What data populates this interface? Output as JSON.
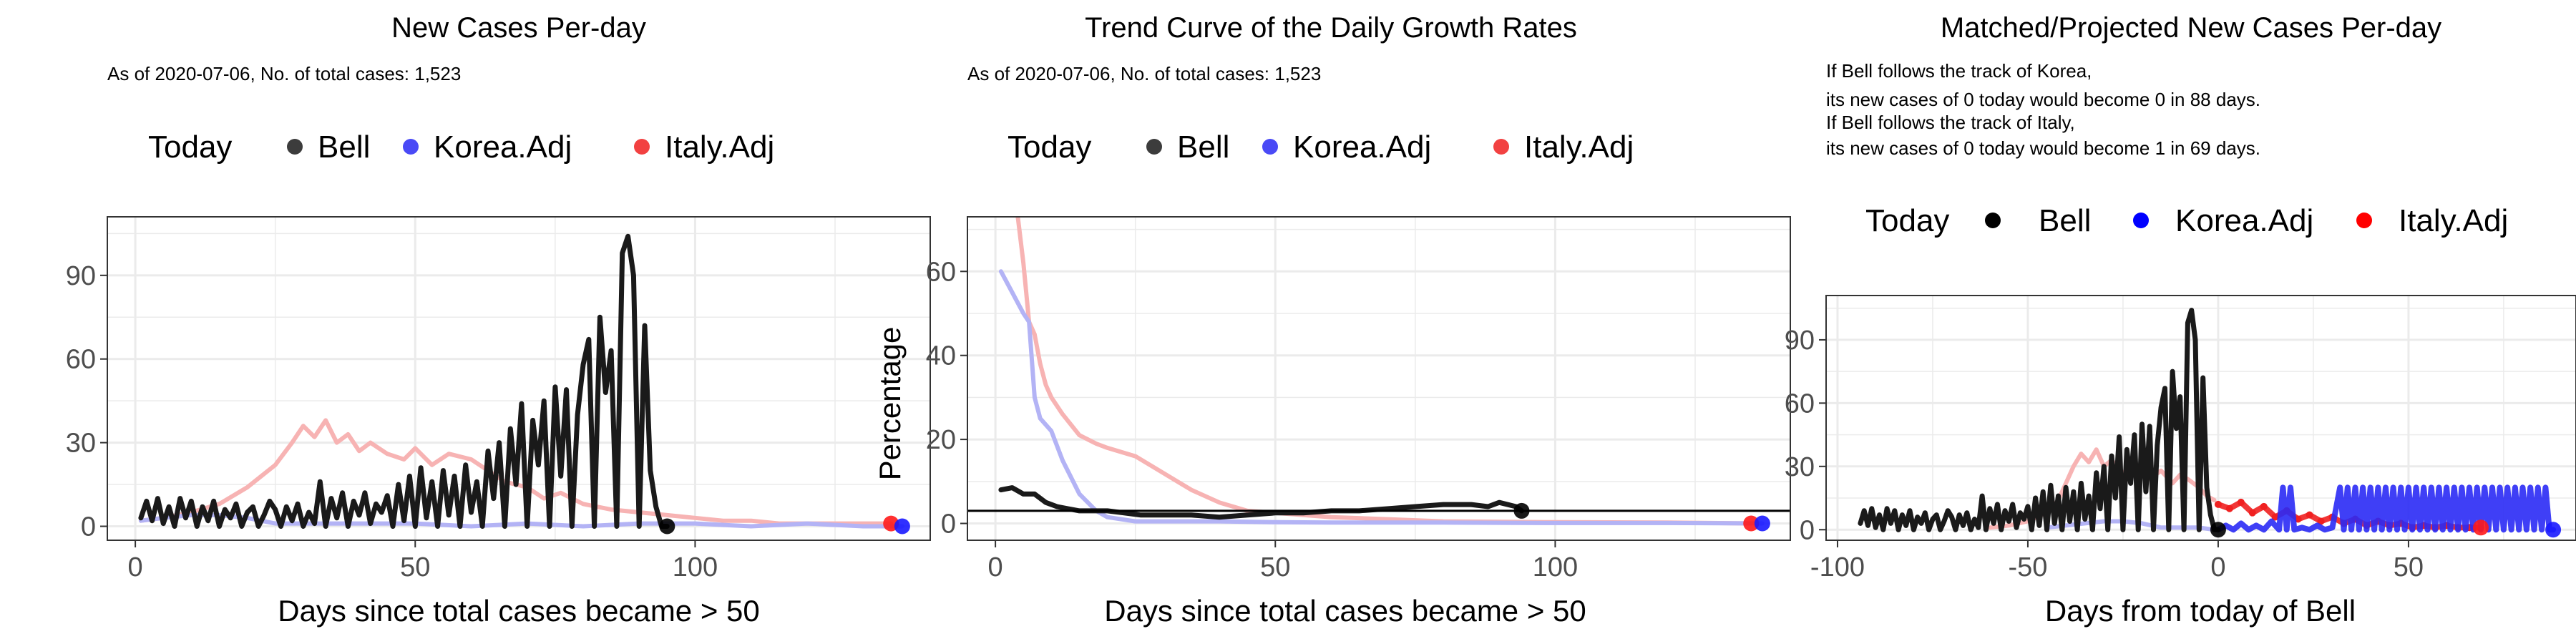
{
  "colors": {
    "bell": "#1a1a1a",
    "korea": "#2a2af5",
    "italy": "#f02020",
    "korea_faded": "#b3b3f5",
    "italy_faded": "#f7b3b3",
    "grid": "#ebebeb",
    "panel_border": "#333333"
  },
  "legend": {
    "title": "Today",
    "items": [
      "Bell",
      "Korea.Adj",
      "Italy.Adj"
    ]
  },
  "chart_data": [
    {
      "type": "line",
      "title": "New Cases Per-day",
      "subtitle": [
        "As of 2020-07-06, No. of total cases: 1,523"
      ],
      "xlabel": "Days since total cases became > 50",
      "ylabel": "",
      "xlim": [
        -5,
        142
      ],
      "ylim": [
        -5,
        111
      ],
      "xticks": [
        0,
        50,
        100
      ],
      "yticks": [
        0,
        30,
        60,
        90
      ],
      "series": [
        {
          "name": "Italy.Adj",
          "x": [
            1,
            5,
            10,
            15,
            20,
            25,
            28,
            30,
            32,
            34,
            36,
            38,
            40,
            42,
            45,
            48,
            50,
            53,
            56,
            60,
            63,
            66,
            70,
            73,
            76,
            80,
            85,
            90,
            95,
            100,
            105,
            110,
            115,
            120,
            125,
            130,
            135
          ],
          "values": [
            2,
            3,
            5,
            8,
            14,
            22,
            30,
            36,
            32,
            38,
            30,
            33,
            27,
            30,
            26,
            24,
            28,
            22,
            26,
            24,
            20,
            16,
            14,
            10,
            12,
            8,
            6,
            5,
            4,
            3,
            2,
            2,
            1,
            1,
            1,
            1,
            1
          ]
        },
        {
          "name": "Korea.Adj",
          "x": [
            1,
            5,
            10,
            15,
            20,
            25,
            30,
            40,
            50,
            60,
            70,
            80,
            90,
            100,
            110,
            120,
            130,
            137
          ],
          "values": [
            2,
            3,
            4,
            4,
            3,
            1,
            1,
            1,
            1,
            0,
            1,
            0,
            1,
            1,
            0,
            1,
            0,
            0
          ]
        },
        {
          "name": "Bell",
          "x": [
            1,
            2,
            3,
            4,
            5,
            6,
            7,
            8,
            9,
            10,
            11,
            12,
            13,
            14,
            15,
            16,
            17,
            18,
            19,
            20,
            21,
            22,
            23,
            24,
            25,
            26,
            27,
            28,
            29,
            30,
            31,
            32,
            33,
            34,
            35,
            36,
            37,
            38,
            39,
            40,
            41,
            42,
            43,
            44,
            45,
            46,
            47,
            48,
            49,
            50,
            51,
            52,
            53,
            54,
            55,
            56,
            57,
            58,
            59,
            60,
            61,
            62,
            63,
            64,
            65,
            66,
            67,
            68,
            69,
            70,
            71,
            72,
            73,
            74,
            75,
            76,
            77,
            78,
            79,
            80,
            81,
            82,
            83,
            84,
            85,
            86,
            87,
            88,
            89,
            90,
            91,
            92,
            93,
            94,
            95
          ],
          "values": [
            3,
            9,
            2,
            10,
            1,
            7,
            0,
            10,
            3,
            9,
            0,
            7,
            2,
            9,
            0,
            6,
            3,
            8,
            0,
            5,
            7,
            0,
            4,
            9,
            6,
            0,
            7,
            2,
            8,
            0,
            5,
            1,
            16,
            0,
            10,
            3,
            12,
            0,
            9,
            4,
            12,
            1,
            8,
            5,
            11,
            0,
            15,
            2,
            18,
            0,
            21,
            3,
            16,
            0,
            20,
            4,
            18,
            0,
            22,
            5,
            16,
            0,
            27,
            10,
            30,
            0,
            35,
            15,
            44,
            0,
            38,
            22,
            45,
            0,
            50,
            18,
            49,
            0,
            40,
            58,
            67,
            0,
            75,
            48,
            63,
            0,
            98,
            104,
            90,
            0,
            72,
            20,
            7,
            0,
            0
          ]
        }
      ],
      "today_points": [
        {
          "name": "Bell",
          "x": 95,
          "y": 0
        },
        {
          "name": "Italy.Adj",
          "x": 135,
          "y": 1
        },
        {
          "name": "Korea.Adj",
          "x": 137,
          "y": 0
        }
      ]
    },
    {
      "type": "line",
      "title": "Trend Curve of the Daily Growth Rates",
      "subtitle": [
        "As of 2020-07-06, No. of total cases: 1,523"
      ],
      "xlabel": "Days since total cases became > 50",
      "ylabel": "Percentage",
      "xlim": [
        -5,
        142
      ],
      "ylim": [
        -4,
        73
      ],
      "xticks": [
        0,
        50,
        100
      ],
      "yticks": [
        0,
        20,
        40,
        60
      ],
      "hline": 3,
      "series": [
        {
          "name": "Italy.Adj",
          "x": [
            4,
            5,
            6,
            7,
            8,
            9,
            10,
            12,
            15,
            18,
            20,
            25,
            30,
            35,
            40,
            45,
            50,
            60,
            70,
            80,
            100,
            120,
            135
          ],
          "values": [
            73,
            62,
            48,
            45,
            38,
            33,
            30,
            26,
            21,
            19,
            18,
            16,
            12,
            8,
            5,
            3,
            2.5,
            1.5,
            1,
            0.5,
            0.3,
            0.2,
            0
          ]
        },
        {
          "name": "Korea.Adj",
          "x": [
            1,
            3,
            5,
            6,
            7,
            8,
            10,
            12,
            15,
            18,
            20,
            25,
            30,
            40,
            50,
            60,
            80,
            100,
            120,
            137
          ],
          "values": [
            60,
            55,
            50,
            48,
            30,
            25,
            22,
            15,
            7,
            3,
            1.5,
            0.5,
            0.5,
            0.5,
            0.3,
            0.2,
            0.2,
            0.1,
            0.1,
            0
          ]
        },
        {
          "name": "Bell",
          "x": [
            1,
            3,
            5,
            7,
            9,
            11,
            13,
            15,
            18,
            20,
            23,
            26,
            30,
            35,
            40,
            45,
            50,
            55,
            60,
            65,
            70,
            75,
            80,
            85,
            88,
            90,
            93,
            94
          ],
          "values": [
            8,
            8.5,
            7,
            7,
            5,
            4,
            3.5,
            3,
            3,
            3,
            2.5,
            2,
            2,
            2,
            1.5,
            2,
            2.5,
            2.5,
            3,
            3,
            3.5,
            4,
            4.5,
            4.5,
            4,
            5,
            4,
            3
          ]
        }
      ],
      "today_points": [
        {
          "name": "Bell",
          "x": 94,
          "y": 3
        },
        {
          "name": "Italy.Adj",
          "x": 135,
          "y": 0
        },
        {
          "name": "Korea.Adj",
          "x": 137,
          "y": 0
        }
      ]
    },
    {
      "type": "line",
      "title": "Matched/Projected New Cases Per-day",
      "subtitle": [
        "If Bell follows the track of Korea,",
        "its new cases of 0 today would become 0 in 88 days.",
        "If Bell follows the track of Italy,",
        "its new cases of 0 today would become 1 in 69 days."
      ],
      "xlabel": "Days from today of Bell",
      "ylabel": "",
      "xlim": [
        -103,
        94
      ],
      "ylim": [
        -5,
        111
      ],
      "xticks": [
        -100,
        -50,
        0,
        50
      ],
      "yticks": [
        0,
        30,
        60,
        90
      ],
      "series": [
        {
          "name": "Italy.Adj",
          "x": [
            -60,
            -55,
            -50,
            -45,
            -42,
            -40,
            -38,
            -36,
            -34,
            -32,
            -30,
            -28,
            -25,
            -22,
            -20,
            -18,
            -15,
            -12,
            -10,
            -8,
            -5,
            -3,
            -1
          ],
          "values": [
            1,
            2,
            4,
            8,
            14,
            22,
            30,
            36,
            32,
            38,
            30,
            33,
            27,
            30,
            26,
            24,
            28,
            22,
            26,
            24,
            20,
            16,
            14
          ],
          "faded": true
        },
        {
          "name": "Italy.Adj",
          "x": [
            0,
            3,
            6,
            9,
            12,
            15,
            18,
            21,
            24,
            27,
            30,
            33,
            36,
            39,
            42,
            45,
            48,
            51,
            54,
            57,
            60,
            63,
            66,
            69
          ],
          "values": [
            12,
            10,
            13,
            8,
            11,
            6,
            9,
            5,
            7,
            4,
            6,
            3,
            5,
            2,
            4,
            2,
            3,
            1,
            2,
            1,
            2,
            1,
            1,
            1
          ],
          "projected": true
        },
        {
          "name": "Korea.Adj",
          "x": [
            -45,
            -40,
            -35,
            -30,
            -25,
            -20,
            -15,
            -10,
            -5,
            -1
          ],
          "values": [
            1,
            2,
            3,
            4,
            4,
            3,
            1,
            1,
            1,
            0
          ],
          "faded": true
        },
        {
          "name": "Korea.Adj",
          "x": [
            0,
            2,
            4,
            6,
            8,
            10,
            12,
            14,
            16,
            17,
            18,
            19,
            20,
            22,
            24,
            26,
            28,
            30,
            32,
            33,
            34,
            35,
            36,
            37,
            38,
            39,
            40,
            41,
            42,
            43,
            44,
            45,
            46,
            47,
            48,
            49,
            50,
            51,
            52,
            53,
            54,
            55,
            56,
            57,
            58,
            59,
            60,
            61,
            62,
            63,
            64,
            65,
            66,
            67,
            68,
            69,
            70,
            71,
            72,
            73,
            74,
            75,
            76,
            77,
            78,
            79,
            80,
            81,
            82,
            83,
            84,
            85,
            86,
            87,
            88
          ],
          "values": [
            0,
            2,
            0,
            3,
            0,
            2,
            0,
            4,
            0,
            20,
            0,
            20,
            0,
            1,
            0,
            2,
            0,
            1,
            20,
            0,
            20,
            0,
            20,
            0,
            20,
            0,
            20,
            0,
            20,
            0,
            20,
            0,
            20,
            0,
            20,
            0,
            20,
            0,
            20,
            0,
            20,
            0,
            20,
            0,
            20,
            0,
            20,
            0,
            20,
            0,
            20,
            0,
            20,
            0,
            20,
            0,
            20,
            0,
            20,
            0,
            20,
            0,
            20,
            0,
            20,
            0,
            20,
            0,
            20,
            0,
            20,
            0,
            20,
            0,
            0
          ],
          "projected": true
        },
        {
          "name": "Bell",
          "x": [
            -94,
            -93,
            -92,
            -91,
            -90,
            -89,
            -88,
            -87,
            -86,
            -85,
            -84,
            -83,
            -82,
            -81,
            -80,
            -79,
            -78,
            -77,
            -76,
            -75,
            -74,
            -73,
            -72,
            -71,
            -70,
            -69,
            -68,
            -67,
            -66,
            -65,
            -64,
            -63,
            -62,
            -61,
            -60,
            -59,
            -58,
            -57,
            -56,
            -55,
            -54,
            -53,
            -52,
            -51,
            -50,
            -49,
            -48,
            -47,
            -46,
            -45,
            -44,
            -43,
            -42,
            -41,
            -40,
            -39,
            -38,
            -37,
            -36,
            -35,
            -34,
            -33,
            -32,
            -31,
            -30,
            -29,
            -28,
            -27,
            -26,
            -25,
            -24,
            -23,
            -22,
            -21,
            -20,
            -19,
            -18,
            -17,
            -16,
            -15,
            -14,
            -13,
            -12,
            -11,
            -10,
            -9,
            -8,
            -7,
            -6,
            -5,
            -4,
            -3,
            -2,
            -1,
            0
          ],
          "values": [
            3,
            9,
            2,
            10,
            1,
            7,
            0,
            10,
            3,
            9,
            0,
            7,
            2,
            9,
            0,
            6,
            3,
            8,
            0,
            5,
            7,
            0,
            4,
            9,
            6,
            0,
            7,
            2,
            8,
            0,
            5,
            1,
            16,
            0,
            10,
            3,
            12,
            0,
            9,
            4,
            12,
            1,
            8,
            5,
            11,
            0,
            15,
            2,
            18,
            0,
            21,
            3,
            16,
            0,
            20,
            4,
            18,
            0,
            22,
            5,
            16,
            0,
            27,
            10,
            30,
            0,
            35,
            15,
            44,
            0,
            38,
            22,
            45,
            0,
            50,
            18,
            49,
            0,
            40,
            58,
            67,
            0,
            75,
            48,
            63,
            0,
            98,
            104,
            90,
            0,
            72,
            20,
            7,
            0,
            0
          ]
        }
      ],
      "today_points": [
        {
          "name": "Bell",
          "x": 0,
          "y": 0
        },
        {
          "name": "Italy.Adj",
          "x": 69,
          "y": 1
        },
        {
          "name": "Korea.Adj",
          "x": 88,
          "y": 0
        }
      ]
    }
  ]
}
